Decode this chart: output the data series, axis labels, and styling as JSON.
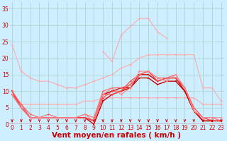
{
  "xlabel": "Vent moyen/en rafales ( km/h )",
  "background_color": "#cceeff",
  "grid_color": "#aacccc",
  "x_ticks": [
    0,
    1,
    2,
    3,
    4,
    5,
    6,
    7,
    8,
    9,
    10,
    11,
    12,
    13,
    14,
    15,
    16,
    17,
    18,
    19,
    20,
    21,
    22,
    23
  ],
  "ylim": [
    0,
    37
  ],
  "xlim": [
    -0.3,
    23.3
  ],
  "yticks": [
    0,
    5,
    10,
    15,
    20,
    25,
    30,
    35
  ],
  "series": [
    {
      "x": [
        0,
        1,
        2,
        3,
        4,
        5,
        6,
        7,
        8,
        9,
        10,
        11,
        12,
        13,
        14,
        15,
        16,
        17,
        18,
        19,
        20,
        21,
        22,
        23
      ],
      "y": [
        24,
        16,
        14,
        13,
        13,
        12,
        11,
        11,
        12,
        13,
        14,
        15,
        17,
        18,
        20,
        21,
        21,
        21,
        21,
        21,
        21,
        11,
        11,
        7
      ],
      "color": "#ffaaaa",
      "linewidth": 0.8,
      "marker": "D",
      "markersize": 1.5,
      "skip_none": false
    },
    {
      "x": [
        0,
        1,
        2,
        3,
        4,
        5,
        6,
        7,
        8,
        9,
        10,
        11,
        12,
        13,
        14,
        15,
        16,
        17,
        18,
        19,
        20,
        21,
        22,
        23
      ],
      "y": [
        10,
        6,
        6,
        6,
        6,
        6,
        6,
        6,
        7,
        7,
        8,
        8,
        8,
        8,
        8,
        8,
        8,
        8,
        8,
        8,
        8,
        6,
        6,
        6
      ],
      "color": "#ffaaaa",
      "linewidth": 0.8,
      "marker": "D",
      "markersize": 1.5,
      "skip_none": false
    },
    {
      "x": [
        0,
        1,
        2,
        3,
        4,
        5,
        6,
        7,
        8,
        9,
        10,
        11,
        12,
        13,
        14,
        15,
        16,
        17,
        18,
        19,
        20,
        21,
        22,
        23
      ],
      "y": [
        10,
        5,
        2,
        2,
        2,
        2,
        2,
        2,
        2,
        1,
        9,
        10,
        11,
        11,
        15,
        15,
        13,
        14,
        14,
        10,
        4,
        1,
        1,
        1
      ],
      "color": "#cc0000",
      "linewidth": 1.0,
      "marker": "s",
      "markersize": 2.0,
      "skip_none": false
    },
    {
      "x": [
        0,
        1,
        2,
        3,
        4,
        5,
        6,
        7,
        8,
        9,
        10,
        11,
        12,
        13,
        14,
        15,
        16,
        17,
        18,
        19,
        20,
        21,
        22,
        23
      ],
      "y": [
        9,
        5,
        2,
        2,
        2,
        2,
        2,
        2,
        2,
        0,
        7,
        9,
        10,
        11,
        14,
        14,
        12,
        13,
        13,
        10,
        4,
        1,
        1,
        1
      ],
      "color": "#cc0000",
      "linewidth": 1.0,
      "marker": "s",
      "markersize": 2.0,
      "skip_none": false
    },
    {
      "x": [
        0,
        1,
        2,
        3,
        4,
        5,
        6,
        7,
        8,
        9,
        10,
        11,
        12,
        13,
        14,
        15,
        16,
        17,
        18,
        19,
        20,
        21,
        22,
        23
      ],
      "y": [
        9,
        6,
        2,
        2,
        2,
        2,
        2,
        2,
        2,
        1,
        9,
        9,
        10,
        13,
        15,
        16,
        13,
        14,
        14,
        11,
        4,
        2,
        1,
        1
      ],
      "color": "#ff4444",
      "linewidth": 0.8,
      "marker": "D",
      "markersize": 1.5,
      "skip_none": false
    },
    {
      "x": [
        0,
        1,
        2,
        3,
        4,
        5,
        6,
        7,
        8,
        9,
        10,
        11,
        12,
        13,
        14,
        15,
        16,
        17,
        18,
        19,
        20,
        21,
        22,
        23
      ],
      "y": [
        10,
        5,
        2,
        2,
        2,
        2,
        2,
        2,
        2,
        1,
        8,
        10,
        10,
        12,
        15,
        16,
        13,
        14,
        14,
        11,
        5,
        2,
        1,
        1
      ],
      "color": "#ff4444",
      "linewidth": 0.8,
      "marker": "D",
      "markersize": 1.5,
      "skip_none": false
    },
    {
      "x": [
        0,
        1,
        2,
        3,
        4,
        5,
        6,
        7,
        8,
        9,
        10,
        11,
        12,
        13,
        14,
        15,
        16,
        17,
        18,
        19,
        20,
        21,
        22,
        23
      ],
      "y": [
        10,
        6,
        3,
        2,
        3,
        2,
        2,
        2,
        3,
        2,
        10,
        11,
        11,
        12,
        15,
        16,
        14,
        14,
        15,
        11,
        5,
        2,
        2,
        1
      ],
      "color": "#ff6666",
      "linewidth": 0.8,
      "marker": "D",
      "markersize": 1.5,
      "skip_none": false
    },
    {
      "x": [
        0,
        1,
        2,
        3,
        4,
        5,
        6,
        7,
        8,
        9,
        10,
        11,
        12,
        13,
        14,
        15,
        16,
        17,
        18,
        19,
        20,
        21,
        22,
        23
      ],
      "y": [
        9,
        5,
        2,
        2,
        2,
        2,
        2,
        2,
        3,
        1,
        9,
        11,
        9,
        11,
        16,
        16,
        14,
        13,
        15,
        11,
        4,
        2,
        2,
        2
      ],
      "color": "#ff8888",
      "linewidth": 0.8,
      "marker": "D",
      "markersize": 1.5,
      "skip_none": false
    },
    {
      "x": [
        10,
        11,
        12,
        14,
        15,
        16,
        17
      ],
      "y": [
        22,
        19,
        27,
        32,
        32,
        28,
        26
      ],
      "color": "#ffaaaa",
      "linewidth": 0.8,
      "marker": "D",
      "markersize": 1.5,
      "skip_none": false
    }
  ],
  "arrow_color": "#cc0000",
  "tick_label_color": "#cc0000",
  "axis_label_color": "#cc0000",
  "tick_label_fontsize": 5.5,
  "xlabel_fontsize": 7.5
}
